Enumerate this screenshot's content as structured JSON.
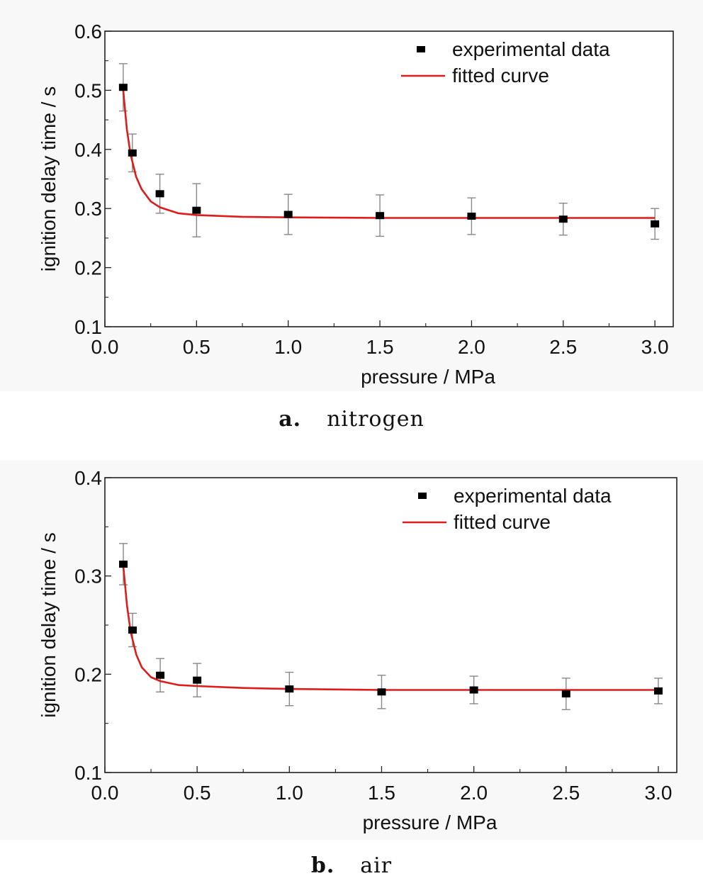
{
  "chart_data": [
    {
      "type": "scatter",
      "panel_label": "a.",
      "panel_name": "nitrogen",
      "xlabel": "pressure / MPa",
      "ylabel": "ignition delay time / s",
      "xlim": [
        0.0,
        3.1
      ],
      "ylim": [
        0.1,
        0.6
      ],
      "xticks": [
        "0.0",
        "0.5",
        "1.0",
        "1.5",
        "2.0",
        "2.5",
        "3.0"
      ],
      "yticks": [
        "0.1",
        "0.2",
        "0.3",
        "0.4",
        "0.5",
        "0.6"
      ],
      "legend_position": "top-right",
      "series": [
        {
          "name": "experimental data",
          "kind": "points-with-error-bars",
          "color": "#000000",
          "x": [
            0.1,
            0.15,
            0.3,
            0.5,
            1.0,
            1.5,
            2.0,
            2.5,
            3.0
          ],
          "y": [
            0.505,
            0.394,
            0.325,
            0.297,
            0.29,
            0.288,
            0.287,
            0.282,
            0.274
          ],
          "error": [
            0.04,
            0.032,
            0.033,
            0.045,
            0.034,
            0.035,
            0.031,
            0.027,
            0.026
          ]
        },
        {
          "name": "fitted curve",
          "kind": "line",
          "color": "#dd1c1c",
          "x": [
            0.1,
            0.12,
            0.14,
            0.17,
            0.2,
            0.25,
            0.3,
            0.4,
            0.5,
            0.75,
            1.0,
            1.5,
            2.0,
            2.5,
            3.0
          ],
          "y": [
            0.5,
            0.434,
            0.392,
            0.354,
            0.333,
            0.312,
            0.302,
            0.292,
            0.289,
            0.286,
            0.285,
            0.284,
            0.284,
            0.284,
            0.284
          ]
        }
      ]
    },
    {
      "type": "scatter",
      "panel_label": "b.",
      "panel_name": "air",
      "xlabel": "pressure / MPa",
      "ylabel": "ignition delay time / s",
      "xlim": [
        0.0,
        3.1
      ],
      "ylim": [
        0.1,
        0.4
      ],
      "xticks": [
        "0.0",
        "0.5",
        "1.0",
        "1.5",
        "2.0",
        "2.5",
        "3.0"
      ],
      "yticks": [
        "0.1",
        "0.2",
        "0.3",
        "0.4"
      ],
      "legend_position": "top-right",
      "series": [
        {
          "name": "experimental data",
          "kind": "points-with-error-bars",
          "color": "#000000",
          "x": [
            0.1,
            0.15,
            0.3,
            0.5,
            1.0,
            1.5,
            2.0,
            2.5,
            3.0
          ],
          "y": [
            0.312,
            0.245,
            0.199,
            0.194,
            0.185,
            0.182,
            0.184,
            0.18,
            0.183
          ],
          "error": [
            0.021,
            0.017,
            0.017,
            0.017,
            0.017,
            0.017,
            0.014,
            0.016,
            0.013
          ]
        },
        {
          "name": "fitted curve",
          "kind": "line",
          "color": "#dd1c1c",
          "x": [
            0.1,
            0.12,
            0.14,
            0.17,
            0.2,
            0.25,
            0.3,
            0.4,
            0.5,
            0.75,
            1.0,
            1.5,
            2.0,
            2.5,
            3.0
          ],
          "y": [
            0.31,
            0.27,
            0.243,
            0.22,
            0.207,
            0.197,
            0.193,
            0.189,
            0.188,
            0.186,
            0.185,
            0.184,
            0.184,
            0.184,
            0.184
          ]
        }
      ]
    }
  ]
}
